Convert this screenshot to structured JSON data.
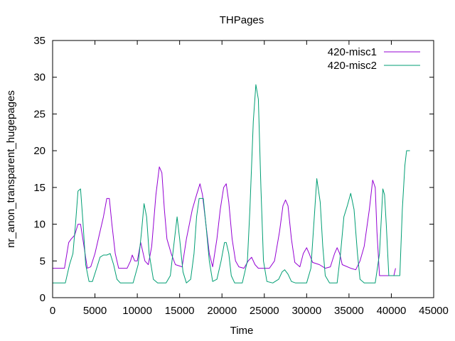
{
  "chart_data": {
    "type": "line",
    "title": "THPages",
    "xlabel": "Time",
    "ylabel": "nr_anon_transparent_hugepages",
    "xlim": [
      0,
      45000
    ],
    "ylim": [
      0,
      35
    ],
    "x_ticks": [
      0,
      5000,
      10000,
      15000,
      20000,
      25000,
      30000,
      35000,
      40000,
      45000
    ],
    "y_ticks": [
      0,
      5,
      10,
      15,
      20,
      25,
      30,
      35
    ],
    "grid": false,
    "legend_position": "top-right",
    "series": [
      {
        "name": "420-misc1",
        "color": "#9400d3",
        "points": [
          [
            0,
            4
          ],
          [
            1400,
            4
          ],
          [
            1900,
            7.5
          ],
          [
            2200,
            8
          ],
          [
            2600,
            8.5
          ],
          [
            3000,
            10
          ],
          [
            3300,
            10
          ],
          [
            3700,
            7
          ],
          [
            4100,
            4
          ],
          [
            4500,
            4.2
          ],
          [
            5000,
            6
          ],
          [
            5500,
            8.5
          ],
          [
            6000,
            11
          ],
          [
            6400,
            13.5
          ],
          [
            6700,
            13.5
          ],
          [
            7000,
            10
          ],
          [
            7400,
            6
          ],
          [
            7800,
            4
          ],
          [
            8800,
            4
          ],
          [
            9200,
            5
          ],
          [
            9400,
            5.8
          ],
          [
            9700,
            5
          ],
          [
            10000,
            5
          ],
          [
            10400,
            7.5
          ],
          [
            10900,
            5
          ],
          [
            11300,
            4.5
          ],
          [
            11700,
            7
          ],
          [
            12200,
            14
          ],
          [
            12600,
            17.8
          ],
          [
            12900,
            17
          ],
          [
            13200,
            12
          ],
          [
            13500,
            8
          ],
          [
            14000,
            6
          ],
          [
            14500,
            4.5
          ],
          [
            15300,
            4.2
          ],
          [
            15800,
            8
          ],
          [
            16500,
            12
          ],
          [
            17000,
            14
          ],
          [
            17400,
            15.5
          ],
          [
            17700,
            14
          ],
          [
            18100,
            10
          ],
          [
            18500,
            6
          ],
          [
            18900,
            4.2
          ],
          [
            19400,
            8
          ],
          [
            19800,
            12
          ],
          [
            20200,
            15
          ],
          [
            20500,
            15.5
          ],
          [
            20800,
            13
          ],
          [
            21200,
            8
          ],
          [
            21600,
            5
          ],
          [
            22000,
            4.2
          ],
          [
            22600,
            4
          ],
          [
            23100,
            5
          ],
          [
            23500,
            5.5
          ],
          [
            23900,
            4.5
          ],
          [
            24300,
            4
          ],
          [
            25600,
            4
          ],
          [
            26200,
            5
          ],
          [
            26800,
            9
          ],
          [
            27200,
            12.5
          ],
          [
            27500,
            13.3
          ],
          [
            27800,
            12.5
          ],
          [
            28200,
            8
          ],
          [
            28600,
            4.8
          ],
          [
            29200,
            4.2
          ],
          [
            29600,
            6
          ],
          [
            30000,
            6.8
          ],
          [
            30300,
            6
          ],
          [
            30700,
            4.8
          ],
          [
            31500,
            4.5
          ],
          [
            32200,
            4
          ],
          [
            32800,
            4.2
          ],
          [
            33300,
            6
          ],
          [
            33600,
            6.8
          ],
          [
            33900,
            6
          ],
          [
            34200,
            4.5
          ],
          [
            35200,
            4
          ],
          [
            35800,
            3.8
          ],
          [
            36300,
            5
          ],
          [
            36800,
            7
          ],
          [
            37400,
            12
          ],
          [
            37800,
            16
          ],
          [
            38100,
            15
          ],
          [
            38300,
            9
          ],
          [
            38600,
            3
          ],
          [
            39800,
            3
          ],
          [
            40300,
            3
          ],
          [
            40500,
            4
          ]
        ]
      },
      {
        "name": "420-misc2",
        "color": "#009e73",
        "points": [
          [
            0,
            2
          ],
          [
            1500,
            2
          ],
          [
            2000,
            4.5
          ],
          [
            2400,
            6
          ],
          [
            2700,
            10
          ],
          [
            3000,
            14.5
          ],
          [
            3300,
            14.8
          ],
          [
            3600,
            10
          ],
          [
            3900,
            4.5
          ],
          [
            4300,
            2.2
          ],
          [
            4700,
            2.2
          ],
          [
            5200,
            4
          ],
          [
            5600,
            5.5
          ],
          [
            6000,
            5.8
          ],
          [
            6400,
            5.8
          ],
          [
            6800,
            6
          ],
          [
            7200,
            4.5
          ],
          [
            7600,
            2.5
          ],
          [
            8000,
            2
          ],
          [
            9500,
            2
          ],
          [
            10100,
            4.5
          ],
          [
            10500,
            9
          ],
          [
            10800,
            12.8
          ],
          [
            11100,
            11
          ],
          [
            11400,
            6
          ],
          [
            11900,
            2.5
          ],
          [
            12400,
            2
          ],
          [
            13400,
            2
          ],
          [
            13900,
            3
          ],
          [
            14200,
            6
          ],
          [
            14500,
            9
          ],
          [
            14700,
            11
          ],
          [
            15000,
            8
          ],
          [
            15400,
            3.5
          ],
          [
            15800,
            2
          ],
          [
            16300,
            2.5
          ],
          [
            16700,
            6
          ],
          [
            17000,
            11
          ],
          [
            17300,
            13.5
          ],
          [
            17800,
            13.5
          ],
          [
            18100,
            10
          ],
          [
            18500,
            5
          ],
          [
            18900,
            2.2
          ],
          [
            19400,
            2.5
          ],
          [
            19900,
            5
          ],
          [
            20300,
            7.5
          ],
          [
            20500,
            7.5
          ],
          [
            20800,
            6
          ],
          [
            21100,
            3
          ],
          [
            21500,
            2
          ],
          [
            22400,
            2
          ],
          [
            23000,
            5
          ],
          [
            23300,
            12
          ],
          [
            23700,
            24
          ],
          [
            24000,
            29
          ],
          [
            24300,
            27
          ],
          [
            24600,
            15
          ],
          [
            24900,
            5
          ],
          [
            25300,
            2.2
          ],
          [
            26000,
            2
          ],
          [
            26700,
            2.5
          ],
          [
            27100,
            3.5
          ],
          [
            27400,
            3.8
          ],
          [
            27800,
            3.2
          ],
          [
            28200,
            2.2
          ],
          [
            28700,
            2
          ],
          [
            30000,
            2
          ],
          [
            30500,
            4
          ],
          [
            30900,
            11
          ],
          [
            31200,
            16.2
          ],
          [
            31600,
            13
          ],
          [
            31900,
            7
          ],
          [
            32200,
            3
          ],
          [
            32700,
            2
          ],
          [
            33600,
            2
          ],
          [
            34000,
            6
          ],
          [
            34400,
            11
          ],
          [
            34800,
            12.5
          ],
          [
            35200,
            14.2
          ],
          [
            35600,
            12
          ],
          [
            36000,
            6
          ],
          [
            36300,
            2.5
          ],
          [
            36800,
            2
          ],
          [
            38100,
            2
          ],
          [
            38600,
            6
          ],
          [
            39000,
            14.8
          ],
          [
            39200,
            14
          ],
          [
            39400,
            10
          ],
          [
            39700,
            3
          ],
          [
            40000,
            3
          ],
          [
            40700,
            3
          ],
          [
            41000,
            3
          ],
          [
            41300,
            12
          ],
          [
            41600,
            18
          ],
          [
            41800,
            20
          ],
          [
            42200,
            20
          ]
        ]
      }
    ]
  }
}
